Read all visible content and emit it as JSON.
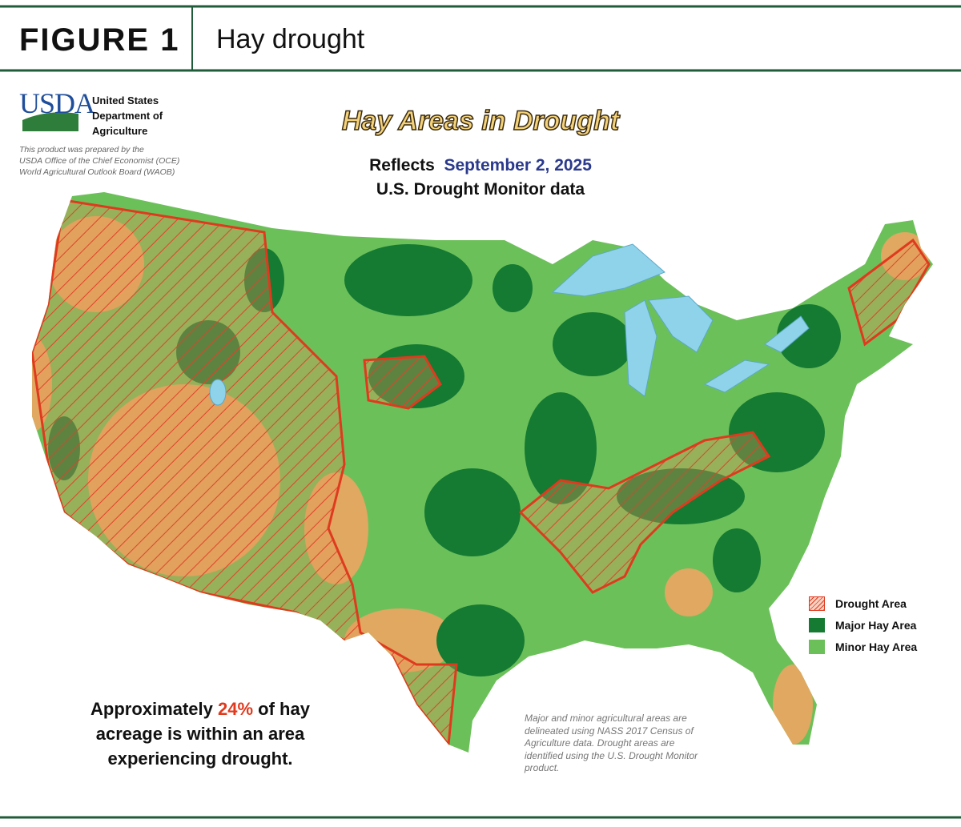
{
  "header": {
    "label": "FIGURE 1",
    "title": "Hay drought"
  },
  "agency": {
    "logo": "USDA",
    "lines": [
      "United States",
      "Department of",
      "Agriculture"
    ],
    "credit": [
      "This product was prepared by the",
      "USDA Office of the Chief Economist (OCE)",
      "World Agricultural Outlook Board (WAOB)"
    ]
  },
  "map": {
    "title": "Hay Areas in Drought",
    "reflects": "Reflects",
    "date": "September 2, 2025",
    "source": "U.S. Drought Monitor data"
  },
  "legend": [
    "Drought Area",
    "Major Hay Area",
    "Minor Hay Area"
  ],
  "summary": {
    "before": "Approximately",
    "share": "24%",
    "after": "of hay",
    "lines": [
      "acreage is within an area",
      "experiencing drought."
    ]
  },
  "note": [
    "Major and minor agricultural areas are",
    "delineated using NASS 2017 Census of",
    "Agriculture data.  Drought areas are",
    "identified using the U.S. Drought Monitor",
    "product."
  ]
}
